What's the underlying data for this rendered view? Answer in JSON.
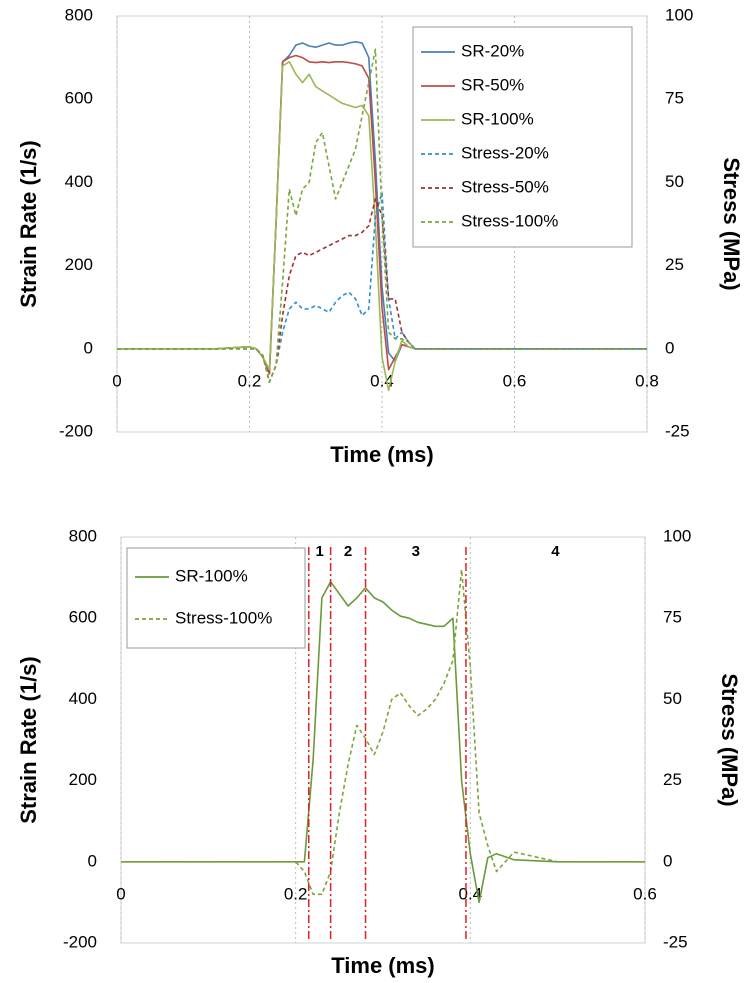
{
  "chart_data": [
    {
      "type": "line",
      "x_label": "Time (ms)",
      "y_label": "Strain Rate (1/s)",
      "y2_label": "Stress (MPa)",
      "xlim": [
        0,
        0.8
      ],
      "xticks": [
        0,
        0.2,
        0.4,
        0.6,
        0.8
      ],
      "ylim": [
        -200,
        800
      ],
      "yticks": [
        -200,
        0,
        200,
        400,
        600,
        800
      ],
      "y2lim": [
        -25,
        100
      ],
      "y2ticks": [
        -25,
        0,
        25,
        50,
        75,
        100
      ],
      "grid": true,
      "legend": "upper right",
      "x": [
        0,
        0.05,
        0.1,
        0.15,
        0.2,
        0.21,
        0.22,
        0.23,
        0.24,
        0.25,
        0.26,
        0.27,
        0.28,
        0.29,
        0.3,
        0.31,
        0.32,
        0.33,
        0.34,
        0.35,
        0.36,
        0.37,
        0.38,
        0.39,
        0.4,
        0.41,
        0.42,
        0.43,
        0.44,
        0.45,
        0.5,
        0.55,
        0.6,
        0.7,
        0.8
      ],
      "series": [
        {
          "name": "SR-20%",
          "color": "#4a7ebb",
          "linestyle": "solid",
          "values": [
            0,
            0,
            0,
            0,
            5,
            0,
            -20,
            -60,
            300,
            690,
            705,
            730,
            735,
            728,
            725,
            730,
            735,
            730,
            730,
            735,
            738,
            735,
            700,
            450,
            150,
            -10,
            -30,
            10,
            5,
            0,
            0,
            0,
            0,
            0,
            0
          ]
        },
        {
          "name": "SR-50%",
          "color": "#be4b48",
          "linestyle": "solid",
          "values": [
            0,
            0,
            0,
            0,
            5,
            0,
            -20,
            -60,
            300,
            690,
            700,
            705,
            700,
            690,
            688,
            690,
            688,
            690,
            690,
            688,
            685,
            680,
            650,
            400,
            100,
            -50,
            -20,
            10,
            5,
            0,
            0,
            0,
            0,
            0,
            0
          ]
        },
        {
          "name": "SR-100%",
          "color": "#98b954",
          "linestyle": "solid",
          "values": [
            0,
            0,
            0,
            0,
            5,
            0,
            -20,
            -50,
            300,
            680,
            690,
            660,
            640,
            660,
            630,
            620,
            610,
            600,
            590,
            585,
            580,
            585,
            560,
            300,
            -20,
            -100,
            -30,
            20,
            5,
            0,
            0,
            0,
            0,
            0,
            0
          ]
        },
        {
          "name": "Stress-20%",
          "color": "#2e8fd0",
          "linestyle": "dashed",
          "axis": "y2",
          "values": [
            0,
            0,
            0,
            0,
            0,
            0,
            -2,
            -10,
            -5,
            5,
            12,
            14,
            12,
            12,
            13,
            12,
            11,
            14,
            16,
            17,
            15,
            10,
            12,
            40,
            47,
            15,
            3,
            5,
            2,
            0,
            0,
            0,
            0,
            0,
            0
          ]
        },
        {
          "name": "Stress-50%",
          "color": "#a0302c",
          "linestyle": "dashed",
          "axis": "y2",
          "values": [
            0,
            0,
            0,
            0,
            0,
            0,
            -2,
            -10,
            -5,
            10,
            22,
            28,
            29,
            28,
            29,
            30,
            31,
            32,
            33,
            34,
            34,
            35,
            37,
            45,
            40,
            15,
            15,
            5,
            2,
            0,
            0,
            0,
            0,
            0,
            0
          ]
        },
        {
          "name": "Stress-100%",
          "color": "#7aa63c",
          "linestyle": "dashed",
          "axis": "y2",
          "values": [
            0,
            0,
            0,
            0,
            0,
            0,
            -2,
            -10,
            -5,
            20,
            48,
            40,
            48,
            50,
            62,
            65,
            55,
            45,
            50,
            55,
            60,
            70,
            80,
            90,
            40,
            5,
            3,
            3,
            2,
            0,
            0,
            0,
            0,
            0,
            0
          ]
        }
      ]
    },
    {
      "type": "line",
      "x_label": "Time (ms)",
      "y_label": "Strain Rate (1/s)",
      "y2_label": "Stress (MPa)",
      "xlim": [
        0,
        0.6
      ],
      "xticks": [
        0,
        0.2,
        0.4,
        0.6
      ],
      "ylim": [
        -200,
        800
      ],
      "yticks": [
        -200,
        0,
        200,
        400,
        600,
        800
      ],
      "y2lim": [
        -25,
        100
      ],
      "y2ticks": [
        -25,
        0,
        25,
        50,
        75,
        100
      ],
      "grid": true,
      "legend": "upper left",
      "vlines": [
        0.215,
        0.24,
        0.28,
        0.395
      ],
      "vline_color": "#e02020",
      "region_labels": [
        "1",
        "2",
        "3",
        "4"
      ],
      "x": [
        0,
        0.05,
        0.1,
        0.15,
        0.2,
        0.21,
        0.22,
        0.23,
        0.24,
        0.25,
        0.26,
        0.27,
        0.28,
        0.29,
        0.3,
        0.31,
        0.32,
        0.33,
        0.34,
        0.35,
        0.36,
        0.37,
        0.38,
        0.39,
        0.4,
        0.41,
        0.42,
        0.43,
        0.45,
        0.5,
        0.55,
        0.6
      ],
      "series": [
        {
          "name": "SR-100%",
          "color": "#6a9a3a",
          "linestyle": "solid",
          "values": [
            0,
            0,
            0,
            0,
            0,
            0,
            250,
            650,
            690,
            660,
            630,
            650,
            675,
            650,
            640,
            620,
            605,
            600,
            590,
            585,
            580,
            580,
            600,
            200,
            20,
            -100,
            10,
            20,
            5,
            0,
            0,
            0
          ]
        },
        {
          "name": "Stress-100%",
          "color": "#7aa63c",
          "linestyle": "dashed",
          "axis": "y2",
          "values": [
            0,
            0,
            0,
            0,
            0,
            -3,
            -10,
            -10,
            -3,
            15,
            30,
            42,
            38,
            33,
            40,
            50,
            52,
            48,
            45,
            47,
            50,
            55,
            62,
            90,
            60,
            15,
            5,
            -3,
            3,
            0,
            0,
            0
          ]
        }
      ]
    }
  ]
}
